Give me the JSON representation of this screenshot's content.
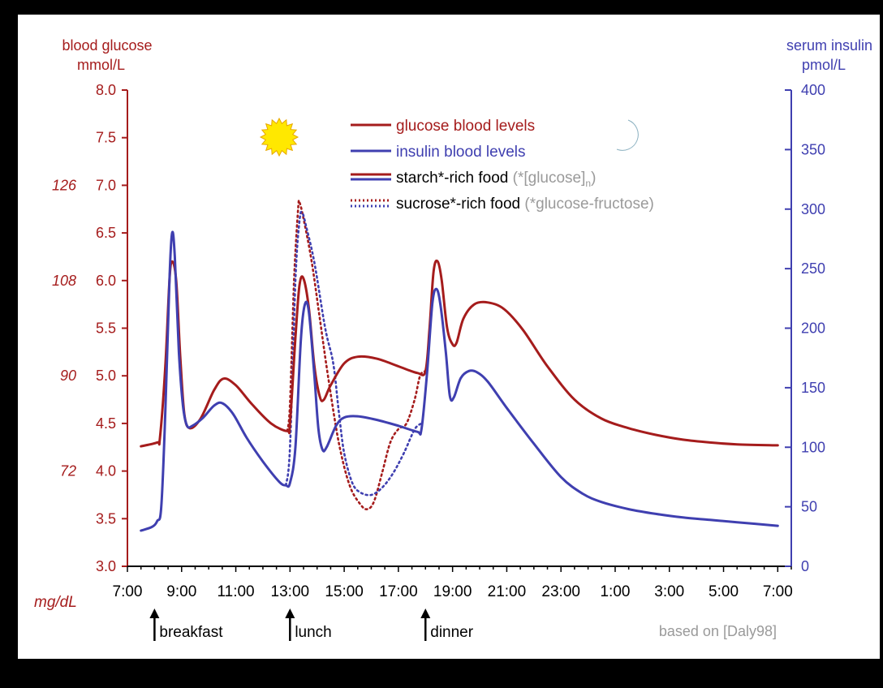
{
  "colors": {
    "glucose": "#a51c1c",
    "insulin": "#3f3fb0",
    "gray_text": "#9a9a9a",
    "tick_text": "#000000",
    "sun": "#ffe800",
    "moon": "#c6dde8"
  },
  "icons": {
    "sun": "sun-icon",
    "moon": "moon-icon",
    "meal_marker": "up-arrow-icon"
  },
  "left_axis": {
    "title_line1": "blood glucose",
    "title_line2": "mmol/L",
    "ticks": [
      "3.0",
      "3.5",
      "4.0",
      "4.5",
      "5.0",
      "5.5",
      "6.0",
      "6.5",
      "7.0",
      "7.5",
      "8.0"
    ],
    "alt_unit": "mg/dL",
    "alt_ticks": [
      {
        "label": "72",
        "value": 4.0
      },
      {
        "label": "90",
        "value": 5.0
      },
      {
        "label": "108",
        "value": 6.0
      },
      {
        "label": "126",
        "value": 7.0
      }
    ]
  },
  "right_axis": {
    "title_line1": "serum insulin",
    "title_line2": "pmol/L",
    "ticks": [
      "0",
      "50",
      "100",
      "150",
      "200",
      "250",
      "300",
      "350",
      "400"
    ]
  },
  "x_axis": {
    "ticks": [
      "7:00",
      "9:00",
      "11:00",
      "13:00",
      "15:00",
      "17:00",
      "19:00",
      "21:00",
      "23:00",
      "1:00",
      "3:00",
      "5:00",
      "7:00"
    ]
  },
  "legend": {
    "glucose": "glucose blood levels",
    "insulin": "insulin blood levels",
    "starch": "starch*-rich food",
    "starch_note": "(*[glucose]",
    "starch_sub": "n",
    "starch_close": ")",
    "sucrose": "sucrose*-rich food",
    "sucrose_note": "(*glucose-fructose)"
  },
  "meals": [
    {
      "label": "breakfast",
      "time": 8.0
    },
    {
      "label": "lunch",
      "time": 13.0
    },
    {
      "label": "dinner",
      "time": 18.0
    }
  ],
  "source": "based on [Daly98]",
  "chart_data": {
    "type": "line",
    "x_unit": "hours since 7:00 (clock time wraps after 24:00)",
    "xlim": [
      0,
      24.5
    ],
    "y_left": {
      "label": "blood glucose mmol/L",
      "ylim": [
        3.0,
        8.0
      ]
    },
    "y_right": {
      "label": "serum insulin pmol/L",
      "ylim": [
        0,
        400
      ]
    },
    "series": [
      {
        "name": "glucose blood levels",
        "axis": "left",
        "style": "solid",
        "points": [
          [
            0.5,
            4.26
          ],
          [
            1.1,
            4.3
          ],
          [
            1.2,
            4.35
          ],
          [
            1.4,
            5.1
          ],
          [
            1.55,
            6.0
          ],
          [
            1.65,
            6.2
          ],
          [
            1.8,
            6.0
          ],
          [
            1.95,
            5.2
          ],
          [
            2.1,
            4.6
          ],
          [
            2.3,
            4.45
          ],
          [
            2.7,
            4.55
          ],
          [
            3.2,
            4.85
          ],
          [
            3.55,
            4.97
          ],
          [
            4.0,
            4.9
          ],
          [
            4.6,
            4.7
          ],
          [
            5.3,
            4.5
          ],
          [
            5.9,
            4.42
          ],
          [
            6.0,
            4.5
          ],
          [
            6.2,
            5.4
          ],
          [
            6.35,
            5.95
          ],
          [
            6.5,
            6.02
          ],
          [
            6.7,
            5.7
          ],
          [
            6.9,
            5.1
          ],
          [
            7.1,
            4.78
          ],
          [
            7.25,
            4.75
          ],
          [
            7.5,
            4.9
          ],
          [
            8.0,
            5.13
          ],
          [
            8.5,
            5.2
          ],
          [
            9.2,
            5.18
          ],
          [
            10.0,
            5.1
          ],
          [
            10.7,
            5.03
          ],
          [
            11.0,
            5.05
          ],
          [
            11.15,
            5.5
          ],
          [
            11.3,
            6.1
          ],
          [
            11.45,
            6.2
          ],
          [
            11.6,
            6.0
          ],
          [
            11.8,
            5.5
          ],
          [
            12.0,
            5.33
          ],
          [
            12.15,
            5.35
          ],
          [
            12.4,
            5.6
          ],
          [
            12.8,
            5.75
          ],
          [
            13.3,
            5.77
          ],
          [
            13.9,
            5.7
          ],
          [
            14.6,
            5.48
          ],
          [
            15.5,
            5.1
          ],
          [
            16.5,
            4.75
          ],
          [
            17.5,
            4.55
          ],
          [
            18.5,
            4.45
          ],
          [
            19.5,
            4.38
          ],
          [
            20.5,
            4.33
          ],
          [
            21.5,
            4.3
          ],
          [
            22.5,
            4.28
          ],
          [
            24.0,
            4.27
          ]
        ]
      },
      {
        "name": "insulin blood levels",
        "axis": "right",
        "style": "solid",
        "points": [
          [
            0.5,
            30
          ],
          [
            0.9,
            33
          ],
          [
            1.1,
            38
          ],
          [
            1.25,
            50
          ],
          [
            1.4,
            130
          ],
          [
            1.55,
            240
          ],
          [
            1.65,
            280
          ],
          [
            1.75,
            260
          ],
          [
            1.9,
            180
          ],
          [
            2.05,
            135
          ],
          [
            2.2,
            118
          ],
          [
            2.4,
            118
          ],
          [
            2.8,
            125
          ],
          [
            3.2,
            135
          ],
          [
            3.5,
            137
          ],
          [
            3.9,
            128
          ],
          [
            4.4,
            108
          ],
          [
            5.0,
            88
          ],
          [
            5.6,
            71
          ],
          [
            5.85,
            68
          ],
          [
            6.0,
            70
          ],
          [
            6.2,
            100
          ],
          [
            6.4,
            190
          ],
          [
            6.55,
            220
          ],
          [
            6.7,
            213
          ],
          [
            6.9,
            160
          ],
          [
            7.05,
            115
          ],
          [
            7.2,
            98
          ],
          [
            7.35,
            100
          ],
          [
            7.7,
            118
          ],
          [
            8.0,
            125
          ],
          [
            8.5,
            126
          ],
          [
            9.2,
            123
          ],
          [
            10.0,
            118
          ],
          [
            10.7,
            113
          ],
          [
            10.85,
            115
          ],
          [
            11.05,
            160
          ],
          [
            11.25,
            220
          ],
          [
            11.4,
            233
          ],
          [
            11.55,
            220
          ],
          [
            11.75,
            180
          ],
          [
            11.9,
            143
          ],
          [
            12.05,
            142
          ],
          [
            12.3,
            158
          ],
          [
            12.6,
            164
          ],
          [
            12.9,
            163
          ],
          [
            13.3,
            155
          ],
          [
            14.0,
            133
          ],
          [
            15.0,
            103
          ],
          [
            16.0,
            75
          ],
          [
            16.8,
            61
          ],
          [
            17.5,
            54
          ],
          [
            18.5,
            48
          ],
          [
            19.5,
            44
          ],
          [
            20.5,
            41
          ],
          [
            21.5,
            39
          ],
          [
            22.5,
            37
          ],
          [
            24.0,
            34
          ]
        ]
      },
      {
        "name": "sucrose*-rich food glucose",
        "axis": "left",
        "style": "dotted",
        "points": [
          [
            5.9,
            4.42
          ],
          [
            6.0,
            4.7
          ],
          [
            6.15,
            6.0
          ],
          [
            6.3,
            6.75
          ],
          [
            6.35,
            6.82
          ],
          [
            6.5,
            6.65
          ],
          [
            6.8,
            6.2
          ],
          [
            7.1,
            5.6
          ],
          [
            7.4,
            5.0
          ],
          [
            7.8,
            4.3
          ],
          [
            8.2,
            3.85
          ],
          [
            8.6,
            3.65
          ],
          [
            8.85,
            3.6
          ],
          [
            9.1,
            3.68
          ],
          [
            9.4,
            3.98
          ],
          [
            9.7,
            4.3
          ],
          [
            10.0,
            4.44
          ],
          [
            10.3,
            4.5
          ],
          [
            10.6,
            4.75
          ],
          [
            10.8,
            5.0
          ],
          [
            11.0,
            5.05
          ]
        ]
      },
      {
        "name": "sucrose*-rich food insulin",
        "axis": "right",
        "style": "dotted",
        "points": [
          [
            5.85,
            68
          ],
          [
            6.0,
            100
          ],
          [
            6.2,
            240
          ],
          [
            6.35,
            290
          ],
          [
            6.45,
            297
          ],
          [
            6.6,
            285
          ],
          [
            6.9,
            255
          ],
          [
            7.3,
            200
          ],
          [
            7.6,
            170
          ],
          [
            7.8,
            130
          ],
          [
            8.0,
            95
          ],
          [
            8.3,
            70
          ],
          [
            8.6,
            62
          ],
          [
            9.0,
            60
          ],
          [
            9.4,
            66
          ],
          [
            9.8,
            78
          ],
          [
            10.2,
            95
          ],
          [
            10.6,
            115
          ],
          [
            10.85,
            120
          ]
        ]
      }
    ]
  }
}
